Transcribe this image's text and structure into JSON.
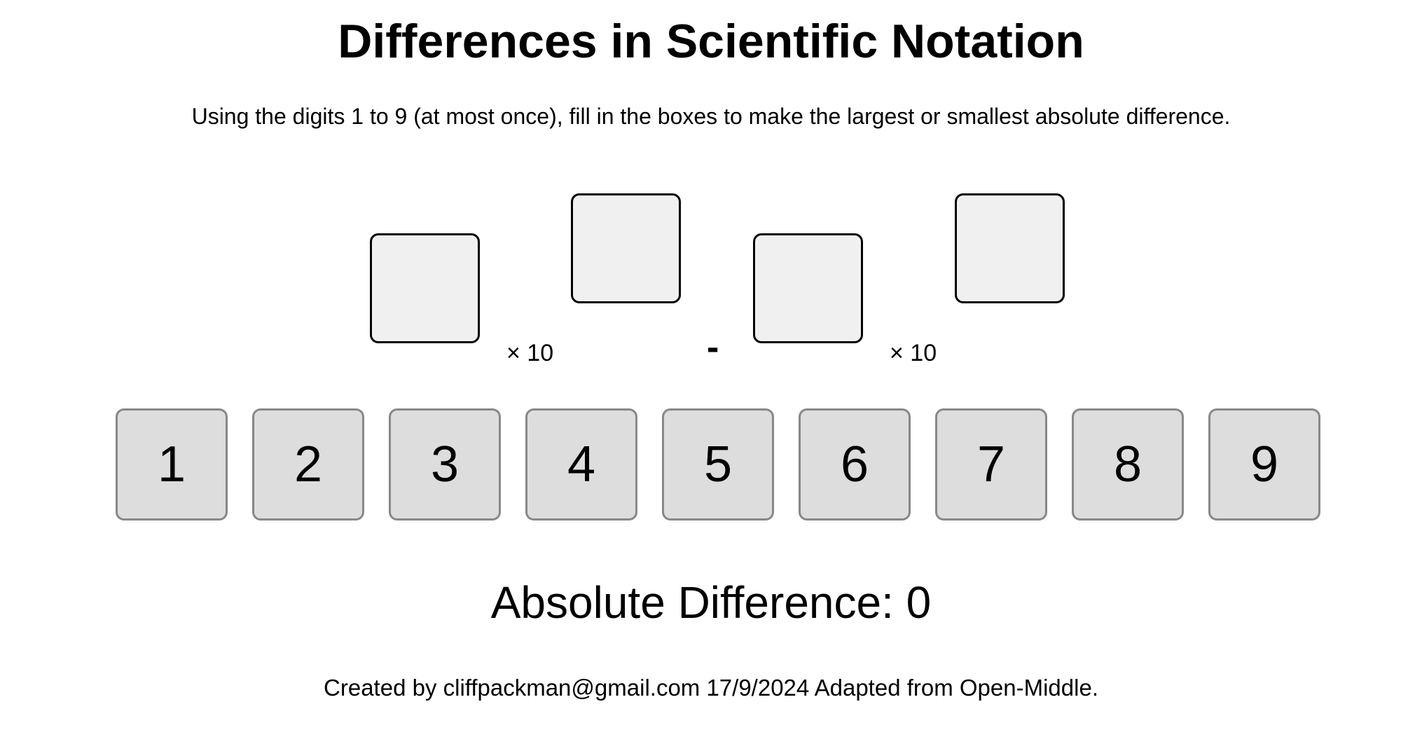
{
  "title": "Differences in Scientific Notation",
  "instructions": "Using the digits 1 to 9 (at most once), fill in the boxes to make the largest or smallest absolute difference.",
  "expression": {
    "term1_coefficient": "",
    "term1_exponent": "",
    "times_label": "× 10",
    "operator": "-",
    "term2_coefficient": "",
    "term2_exponent": ""
  },
  "digits": [
    "1",
    "2",
    "3",
    "4",
    "5",
    "6",
    "7",
    "8",
    "9"
  ],
  "result": {
    "label": "Absolute Difference:",
    "value": "0"
  },
  "footer": "Created by cliffpackman@gmail.com 17/9/2024 Adapted from Open-Middle.",
  "colors": {
    "slot_fill": "#f0f0f0",
    "slot_border": "#000000",
    "tile_fill": "#dddddd",
    "tile_border": "#888888"
  }
}
